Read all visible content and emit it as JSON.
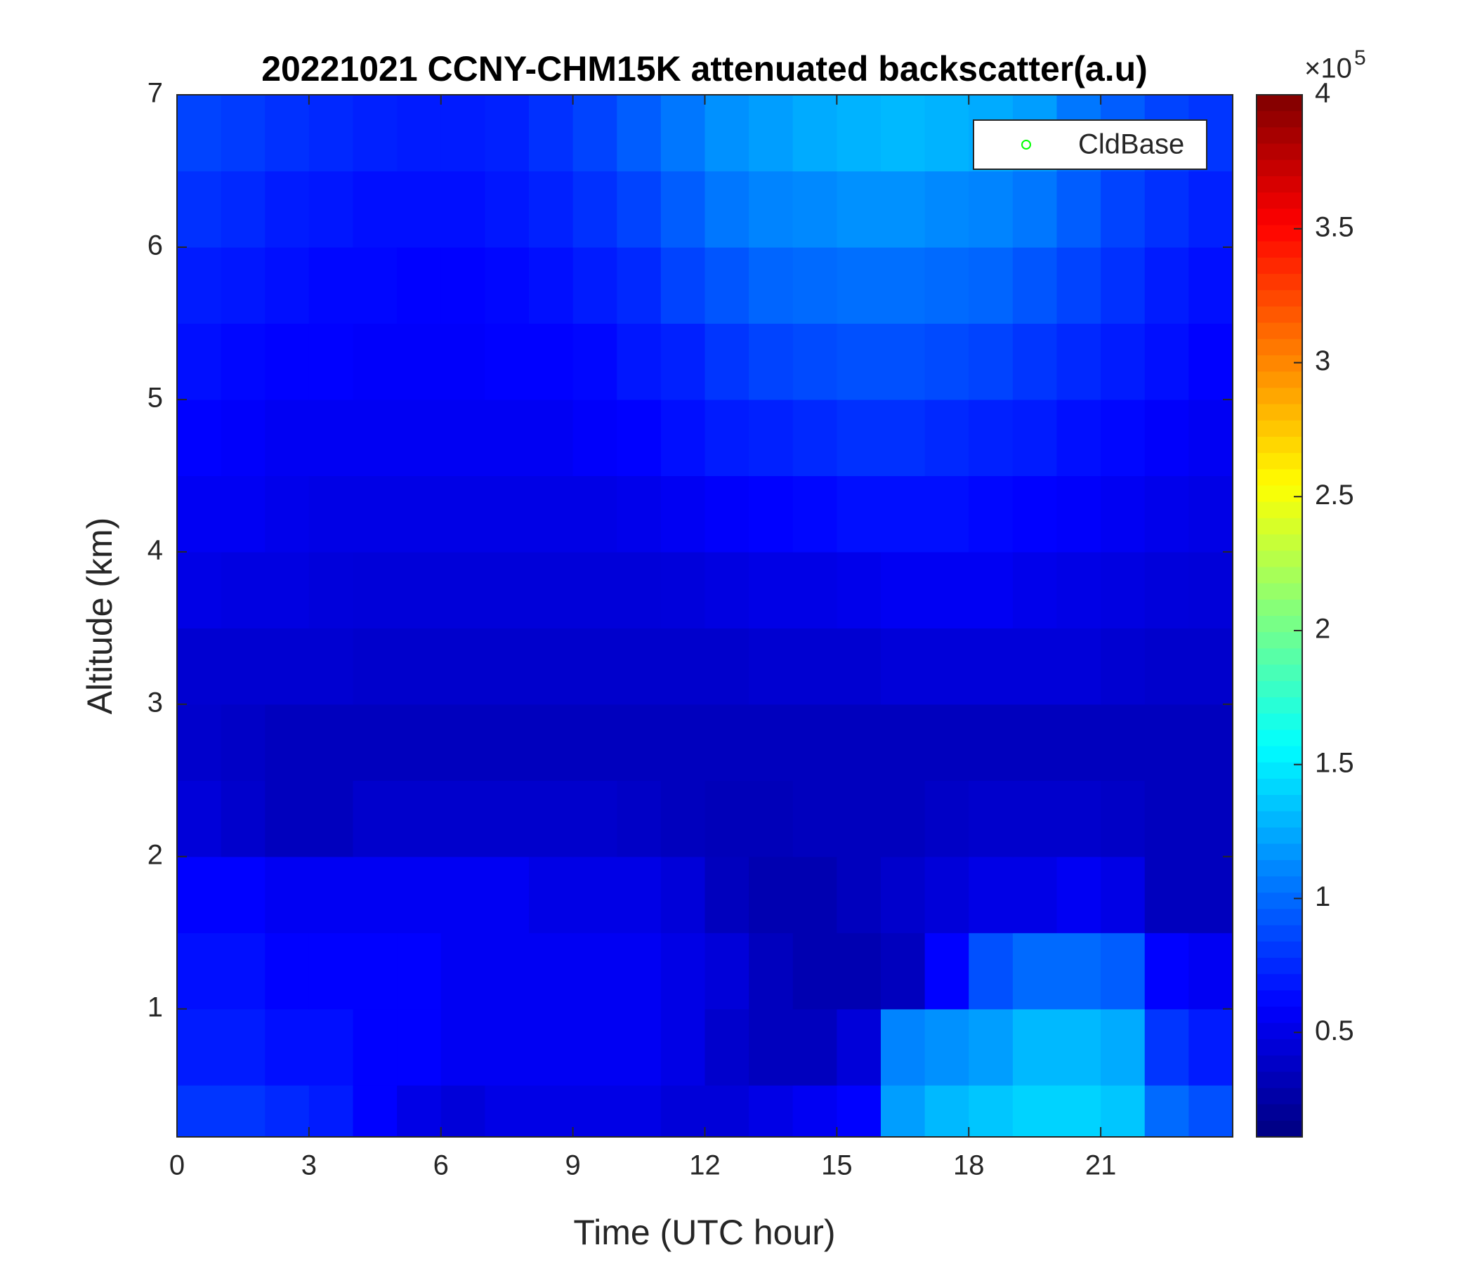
{
  "chart_data": {
    "type": "heatmap",
    "title": "20221021 CCNY-CHM15K attenuated backscatter(a.u)",
    "xlabel": "Time (UTC hour)",
    "ylabel": "Altitude (km)",
    "xlim": [
      0,
      24
    ],
    "xticks": [
      0,
      3,
      6,
      9,
      12,
      15,
      18,
      21
    ],
    "ylim": [
      0.16,
      7
    ],
    "yticks": [
      1,
      2,
      3,
      4,
      5,
      6,
      7
    ],
    "colormap": "jet",
    "clim": [
      0.11,
      4
    ],
    "cticks": [
      0.5,
      1,
      1.5,
      2,
      2.5,
      3,
      3.5,
      4
    ],
    "colorbar_multiplier": "×10",
    "colorbar_exponent": "5",
    "legend": "upper right",
    "series": [
      {
        "name": "CldBase",
        "color": "#00ff00",
        "marker": "circle",
        "x": [],
        "values": []
      }
    ],
    "x": [
      0.5,
      1.5,
      2.5,
      3.5,
      4.5,
      5.5,
      6.5,
      7.5,
      8.5,
      9.5,
      10.5,
      11.5,
      12.5,
      13.5,
      14.5,
      15.5,
      16.5,
      17.5,
      18.5,
      19.5,
      20.5,
      21.5,
      22.5,
      23.5
    ],
    "y": [
      0.25,
      0.75,
      1.25,
      1.75,
      2.25,
      2.75,
      3.25,
      3.75,
      4.25,
      4.75,
      5.25,
      5.75,
      6.25,
      6.75
    ],
    "values": [
      [
        0.8,
        0.8,
        0.75,
        0.7,
        0.6,
        0.5,
        0.45,
        0.5,
        0.5,
        0.5,
        0.5,
        0.45,
        0.45,
        0.5,
        0.55,
        0.6,
        1.2,
        1.3,
        1.35,
        1.4,
        1.4,
        1.35,
        1.0,
        0.9
      ],
      [
        0.7,
        0.7,
        0.65,
        0.65,
        0.6,
        0.6,
        0.55,
        0.55,
        0.55,
        0.55,
        0.55,
        0.5,
        0.4,
        0.35,
        0.35,
        0.45,
        1.1,
        1.15,
        1.2,
        1.3,
        1.3,
        1.25,
        0.8,
        0.7
      ],
      [
        0.65,
        0.65,
        0.6,
        0.6,
        0.6,
        0.6,
        0.55,
        0.55,
        0.55,
        0.55,
        0.55,
        0.5,
        0.45,
        0.35,
        0.3,
        0.3,
        0.35,
        0.6,
        0.9,
        1.0,
        1.0,
        0.95,
        0.6,
        0.55
      ],
      [
        0.6,
        0.6,
        0.55,
        0.55,
        0.55,
        0.55,
        0.55,
        0.55,
        0.5,
        0.5,
        0.5,
        0.45,
        0.35,
        0.3,
        0.3,
        0.35,
        0.4,
        0.45,
        0.5,
        0.5,
        0.55,
        0.5,
        0.35,
        0.35
      ],
      [
        0.45,
        0.4,
        0.35,
        0.35,
        0.4,
        0.4,
        0.4,
        0.4,
        0.4,
        0.4,
        0.38,
        0.35,
        0.33,
        0.33,
        0.35,
        0.35,
        0.35,
        0.38,
        0.4,
        0.4,
        0.4,
        0.38,
        0.35,
        0.35
      ],
      [
        0.4,
        0.38,
        0.35,
        0.35,
        0.35,
        0.35,
        0.35,
        0.35,
        0.35,
        0.35,
        0.35,
        0.35,
        0.35,
        0.35,
        0.35,
        0.35,
        0.35,
        0.35,
        0.35,
        0.35,
        0.35,
        0.35,
        0.35,
        0.35
      ],
      [
        0.42,
        0.42,
        0.42,
        0.42,
        0.4,
        0.4,
        0.4,
        0.4,
        0.4,
        0.4,
        0.4,
        0.4,
        0.4,
        0.42,
        0.42,
        0.42,
        0.45,
        0.45,
        0.45,
        0.45,
        0.45,
        0.42,
        0.4,
        0.4
      ],
      [
        0.5,
        0.48,
        0.48,
        0.46,
        0.45,
        0.45,
        0.45,
        0.45,
        0.45,
        0.45,
        0.45,
        0.46,
        0.48,
        0.5,
        0.5,
        0.52,
        0.55,
        0.55,
        0.55,
        0.52,
        0.5,
        0.48,
        0.46,
        0.45
      ],
      [
        0.55,
        0.55,
        0.52,
        0.5,
        0.5,
        0.5,
        0.5,
        0.5,
        0.5,
        0.5,
        0.52,
        0.55,
        0.58,
        0.6,
        0.62,
        0.65,
        0.65,
        0.65,
        0.62,
        0.6,
        0.58,
        0.55,
        0.52,
        0.5
      ],
      [
        0.6,
        0.58,
        0.55,
        0.55,
        0.55,
        0.55,
        0.55,
        0.55,
        0.55,
        0.58,
        0.6,
        0.65,
        0.7,
        0.72,
        0.75,
        0.78,
        0.78,
        0.75,
        0.72,
        0.7,
        0.65,
        0.62,
        0.58,
        0.55
      ],
      [
        0.65,
        0.62,
        0.6,
        0.6,
        0.58,
        0.58,
        0.58,
        0.6,
        0.6,
        0.62,
        0.68,
        0.72,
        0.8,
        0.85,
        0.88,
        0.9,
        0.9,
        0.88,
        0.85,
        0.8,
        0.75,
        0.7,
        0.65,
        0.6
      ],
      [
        0.7,
        0.68,
        0.65,
        0.62,
        0.62,
        0.6,
        0.6,
        0.62,
        0.65,
        0.7,
        0.75,
        0.85,
        0.92,
        0.98,
        1.0,
        1.02,
        1.02,
        1.0,
        0.98,
        0.92,
        0.85,
        0.78,
        0.7,
        0.65
      ],
      [
        0.78,
        0.75,
        0.7,
        0.68,
        0.65,
        0.65,
        0.65,
        0.68,
        0.72,
        0.78,
        0.85,
        0.95,
        1.05,
        1.1,
        1.12,
        1.15,
        1.15,
        1.12,
        1.1,
        1.05,
        0.95,
        0.85,
        0.78,
        0.72
      ],
      [
        0.85,
        0.82,
        0.78,
        0.75,
        0.72,
        0.7,
        0.7,
        0.72,
        0.78,
        0.85,
        0.95,
        1.05,
        1.15,
        1.2,
        1.25,
        1.28,
        1.3,
        1.28,
        1.25,
        1.2,
        1.05,
        0.95,
        0.85,
        0.8
      ]
    ]
  }
}
